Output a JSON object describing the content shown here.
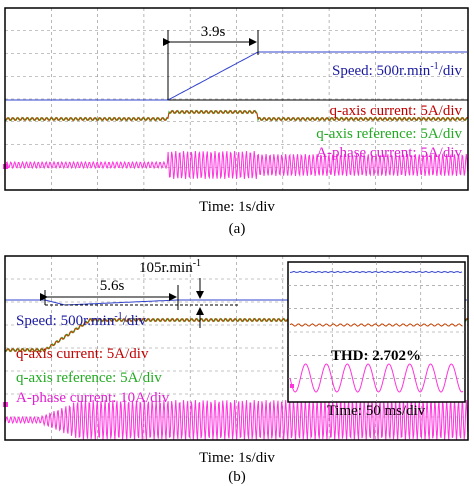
{
  "panel_a": {
    "time_span": "3.9s",
    "speed_label": {
      "text": "Speed: 500r.min",
      "sup": "-1",
      "suffix": "/div"
    },
    "q_current": "q-axis current: 5A/div",
    "q_reference": "q-axis reference: 5A/div",
    "a_phase": "A-phase current: 5A/div",
    "time_scale": "Time: 1s/div",
    "caption": "(a)"
  },
  "panel_b": {
    "time_span": "5.6s",
    "speed_drop": {
      "text": "105r.min",
      "sup": "-1"
    },
    "speed_label": {
      "text": "Speed: 500r.min",
      "sup": "-1",
      "suffix": "/div"
    },
    "q_current": "q-axis current: 5A/div",
    "q_reference": "q-axis reference: 5A/div",
    "a_phase": "A-phase current: 10A/div",
    "thd": "THD: 2.702%",
    "inset_time_scale": "Time: 50 ms/div",
    "time_scale": "Time: 1s/div",
    "caption": "(b)"
  }
}
